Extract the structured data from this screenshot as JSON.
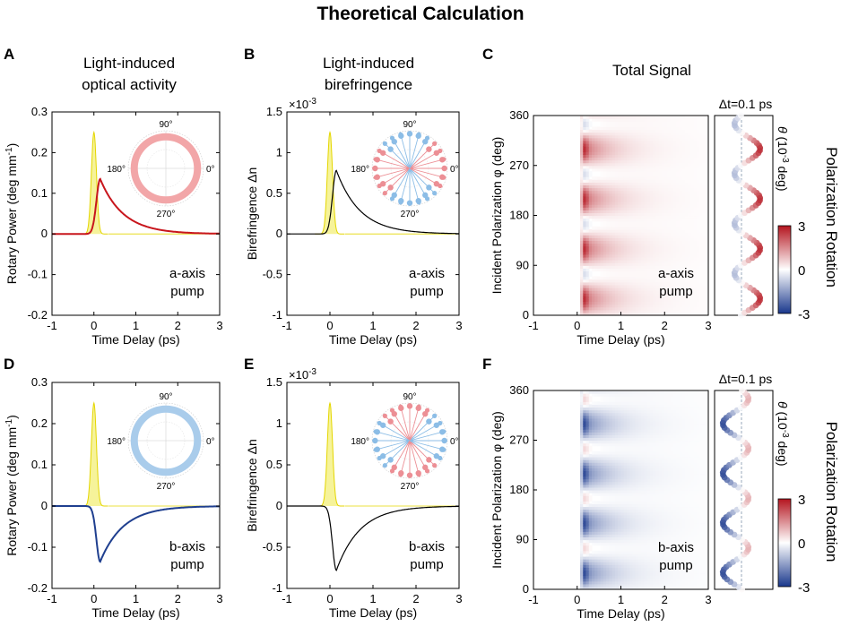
{
  "title": "Theoretical Calculation",
  "letters": [
    "A",
    "B",
    "C",
    "D",
    "E",
    "F"
  ],
  "headers": {
    "A": [
      "Light-induced",
      "optical activity"
    ],
    "B": [
      "Light-induced",
      "birefringence"
    ],
    "C": [
      "Total Signal"
    ]
  },
  "labels": {
    "time_delay": "Time Delay (ps)",
    "rotary_power": "Rotary Power (deg mm",
    "rotary_power_exp": "-1",
    "rotary_power_close": ")",
    "birefringence": "Birefringence Δn",
    "scale_factor": "×10",
    "scale_exp": "-3",
    "incident_polarization": "Incident Polarization φ (deg)",
    "delta_t": "Δt=0.1 ps",
    "theta_1": "θ",
    "theta_2": "(10",
    "theta_exp": "-3",
    "theta_3": "deg)",
    "polarization_rotation": "Polarization Rotation",
    "a_axis": [
      "a-axis",
      "pump"
    ],
    "b_axis": [
      "b-axis",
      "pump"
    ]
  },
  "ticks": {
    "time": [
      "-1",
      "0",
      "1",
      "2",
      "3"
    ],
    "rotary": [
      "-0.2",
      "-0.1",
      "0",
      "0.1",
      "0.2",
      "0.3"
    ],
    "bire": [
      "-1",
      "-0.5",
      "0",
      "0.5",
      "1",
      "1.5"
    ],
    "pol": [
      "0",
      "90",
      "180",
      "270",
      "360"
    ],
    "colorbar": [
      "-3",
      "0",
      "3"
    ],
    "polar": [
      "90°",
      "180°",
      "0°",
      "270°"
    ]
  },
  "colors": {
    "pump_fill": "#f6f39a",
    "pump_line": "#e4d600",
    "red": "#c8161d",
    "blue": "#1f3f8f",
    "black": "#000000",
    "polar_red": "#f2a6a8",
    "polar_blue": "#a9cceb",
    "dot_red": "#ec8f95",
    "dot_blue": "#8cbde6"
  },
  "chart_data": [
    {
      "id": "A",
      "type": "line",
      "xlabel": "Time Delay (ps)",
      "ylabel": "Rotary Power (deg mm-1)",
      "xlim": [
        -1,
        3
      ],
      "ylim": [
        -0.2,
        0.3
      ],
      "series": [
        {
          "role": "pump",
          "peak_time": 0.0,
          "peak_value": 0.25,
          "width": 0.06
        },
        {
          "role": "signal",
          "color": "red",
          "peak_time": 0.15,
          "peak_value": 0.135,
          "rise": 0.09,
          "decay": 0.55
        }
      ],
      "polar_inset": {
        "kind": "ring",
        "color": "red"
      },
      "annotation": [
        "a-axis",
        "pump"
      ]
    },
    {
      "id": "B",
      "type": "line",
      "xlabel": "Time Delay (ps)",
      "ylabel": "Birefringence Δn",
      "scale": "×10-3",
      "xlim": [
        -1,
        3
      ],
      "ylim": [
        -1,
        1.5
      ],
      "series": [
        {
          "role": "pump",
          "peak_time": 0.0,
          "peak_value": 1.25,
          "width": 0.06
        },
        {
          "role": "signal",
          "color": "black",
          "peak_time": 0.15,
          "peak_value": 0.78,
          "rise": 0.09,
          "decay": 0.55
        }
      ],
      "polar_inset": {
        "kind": "four-lobe",
        "positive": "red",
        "negative": "blue"
      },
      "annotation": [
        "a-axis",
        "pump"
      ]
    },
    {
      "id": "C",
      "type": "heatmap",
      "xlabel": "Time Delay (ps)",
      "ylabel": "Incident Polarization φ (deg)",
      "xlim": [
        -1,
        3
      ],
      "ylim": [
        0,
        360
      ],
      "colorbar": {
        "label": "Polarization Rotation",
        "range": [
          -3,
          3
        ],
        "colormap": "blue-white-red"
      },
      "model": {
        "angular_period_deg": 90,
        "peak_phi_deg": [
          30,
          120,
          210,
          300
        ],
        "trough_phi_deg": [
          75,
          165,
          255,
          345
        ],
        "sign": 1
      },
      "slice": {
        "label": "Δt=0.1 ps",
        "axis": "θ (10-3 deg)"
      },
      "annotation": [
        "a-axis",
        "pump"
      ]
    },
    {
      "id": "D",
      "type": "line",
      "xlabel": "Time Delay (ps)",
      "ylabel": "Rotary Power (deg mm-1)",
      "xlim": [
        -1,
        3
      ],
      "ylim": [
        -0.2,
        0.3
      ],
      "series": [
        {
          "role": "pump",
          "peak_time": 0.0,
          "peak_value": 0.25,
          "width": 0.06
        },
        {
          "role": "signal",
          "color": "blue",
          "peak_time": 0.15,
          "peak_value": -0.135,
          "rise": 0.09,
          "decay": 0.55
        }
      ],
      "polar_inset": {
        "kind": "ring",
        "color": "blue"
      },
      "annotation": [
        "b-axis",
        "pump"
      ]
    },
    {
      "id": "E",
      "type": "line",
      "xlabel": "Time Delay (ps)",
      "ylabel": "Birefringence Δn",
      "scale": "×10-3",
      "xlim": [
        -1,
        3
      ],
      "ylim": [
        -1,
        1.5
      ],
      "series": [
        {
          "role": "pump",
          "peak_time": 0.0,
          "peak_value": 1.25,
          "width": 0.06
        },
        {
          "role": "signal",
          "color": "black",
          "peak_time": 0.15,
          "peak_value": -0.78,
          "rise": 0.09,
          "decay": 0.55
        }
      ],
      "polar_inset": {
        "kind": "four-lobe",
        "positive": "blue",
        "negative": "red"
      },
      "annotation": [
        "b-axis",
        "pump"
      ]
    },
    {
      "id": "F",
      "type": "heatmap",
      "xlabel": "Time Delay (ps)",
      "ylabel": "Incident Polarization φ (deg)",
      "xlim": [
        -1,
        3
      ],
      "ylim": [
        0,
        360
      ],
      "colorbar": {
        "label": "Polarization Rotation",
        "range": [
          -3,
          3
        ],
        "colormap": "blue-white-red"
      },
      "model": {
        "angular_period_deg": 90,
        "peak_phi_deg": [
          30,
          120,
          210,
          300
        ],
        "trough_phi_deg": [
          75,
          165,
          255,
          345
        ],
        "sign": -1
      },
      "slice": {
        "label": "Δt=0.1 ps",
        "axis": "θ (10-3 deg)"
      },
      "annotation": [
        "b-axis",
        "pump"
      ]
    }
  ]
}
